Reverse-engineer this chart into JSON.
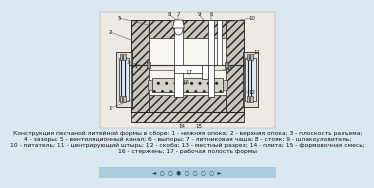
{
  "bg_color": "#dce8f0",
  "drawing_bg": "#f0ede5",
  "hatch_fill": "#d0cdc5",
  "sand_fill": "#c8c5bc",
  "cavity_fill": "#f8f6f0",
  "metal_fill": "#b8b5ae",
  "white": "#ffffff",
  "line_col": "#444444",
  "dark_col": "#222222",
  "nav_bg": "#aaccdd",
  "caption_col": "#111111",
  "caption_fontsize": 4.3,
  "label_fontsize": 4.0,
  "caption_lines": [
    "Конструкция песчаной литейной формы в сборе: 1 - нижняя опока; 2 - верхняя опока; 3 - плоскость разъема;",
    "4 - зазоры; 5 - вентиляционный канал; 6 - выпоры; 7 - литниковая чаша; 8 - стояк; 9 - шлакоуловитель;",
    "10 - питатель; 11 - центрирующий штырь; 12 - скоба; 13 - местный разрез; 14 - плита; 15 - формовочная смесь;",
    "16 - стержень; 17 - рабочая полость формы"
  ]
}
